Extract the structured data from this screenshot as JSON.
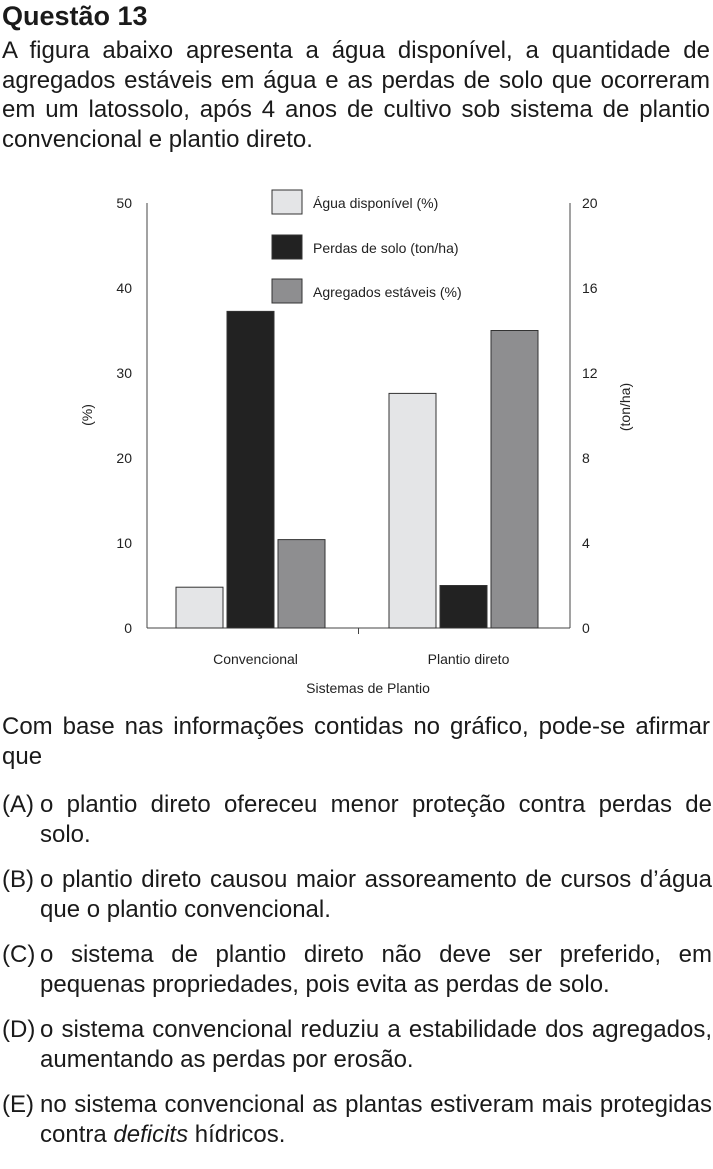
{
  "question": {
    "title": "Questão 13",
    "intro": "A figura abaixo apresenta a água disponível, a quantidade de agregados estáveis em água e as perdas de solo que ocorreram em um latossolo, após 4 anos de cultivo sob sistema de plantio convencional e plantio direto.",
    "prompt": "Com base nas informações contidas no gráfico, pode-se afirmar que",
    "options": [
      {
        "letter": "(A)",
        "text": "o plantio direto ofereceu menor proteção contra perdas de solo."
      },
      {
        "letter": "(B)",
        "text": "o plantio direto causou maior assoreamento de cursos d’água que o plantio convencional."
      },
      {
        "letter": "(C)",
        "text": "o sistema de plantio direto não deve ser preferido, em pequenas propriedades, pois evita as perdas de solo."
      },
      {
        "letter": "(D)",
        "text": "o sistema convencional reduziu a estabilidade dos agregados, aumentando as perdas por erosão."
      },
      {
        "letter": "(E)",
        "pre": "no sistema convencional as plantas estiveram mais protegidas contra ",
        "emph": "deficits",
        "post": " hídricos."
      }
    ]
  },
  "chart_data": {
    "type": "bar",
    "title": "",
    "xlabel": "Sistemas de Plantio",
    "ylabel_left": "(%)",
    "ylabel_right": "(ton/ha)",
    "ylim_left": [
      0,
      50
    ],
    "ylim_right": [
      0,
      20
    ],
    "yticks_left": [
      "0",
      "10",
      "20",
      "30",
      "40",
      "50"
    ],
    "yticks_right": [
      "0",
      "4",
      "8",
      "12",
      "16",
      "20"
    ],
    "categories": [
      "Convencional",
      "Plantio direto"
    ],
    "legend_position": "top-center",
    "series": [
      {
        "name": "Água disponível (%)",
        "axis": "left",
        "color": "#e4e5e7",
        "values": [
          4.8,
          27.6
        ]
      },
      {
        "name": "Perdas de solo (ton/ha)",
        "axis": "right",
        "color": "#222222",
        "values": [
          14.9,
          2.0
        ]
      },
      {
        "name": "Agregados estáveis (%)",
        "axis": "left",
        "color": "#8e8e90",
        "values": [
          10.4,
          35.0
        ]
      }
    ],
    "legend_order": [
      0,
      1,
      2
    ]
  }
}
